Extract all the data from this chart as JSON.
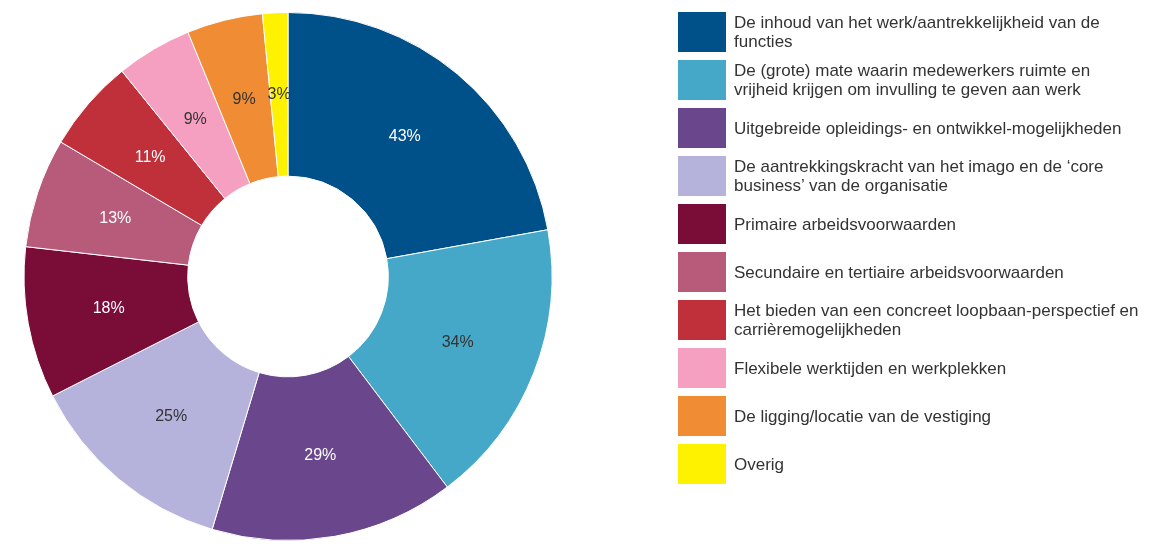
{
  "chart_data": {
    "type": "donut",
    "categories": [
      "De inhoud van het werk/aantrekkelijkheid van de functies",
      "De (grote) mate waarin medewerkers ruimte en vrijheid krijgen om invulling te geven aan werk",
      "Uitgebreide opleidings- en ontwikkel-mogelijkheden",
      "De aantrekkingskracht van het imago en de ‘core business’ van de organisatie",
      "Primaire arbeidsvoorwaarden",
      "Secundaire en tertiaire arbeidsvoorwaarden",
      "Het bieden van een concreet loopbaan-perspectief en carrièremogelijkheden",
      "Flexibele werktijden en werkplekken",
      "De ligging/locatie van de vestiging",
      "Overig"
    ],
    "values": [
      43,
      34,
      29,
      25,
      18,
      13,
      11,
      9,
      9,
      3
    ],
    "value_labels": [
      "43%",
      "34%",
      "29%",
      "25%",
      "18%",
      "13%",
      "11%",
      "9%",
      "9%",
      "3%"
    ],
    "colors": [
      "#00518a",
      "#46a8c8",
      "#6a478c",
      "#b5b2dc",
      "#7a0c38",
      "#b85a7a",
      "#c0303a",
      "#f5a0c0",
      "#f08c34",
      "#fff200"
    ],
    "legend": "right"
  }
}
